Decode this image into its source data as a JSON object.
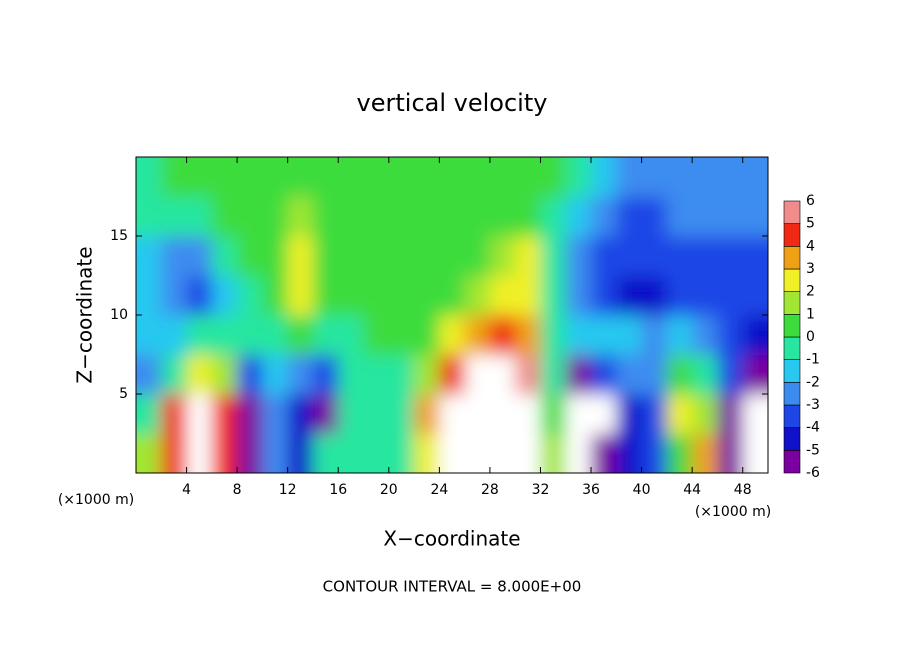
{
  "chart_data": {
    "type": "heatmap",
    "title": "vertical velocity",
    "x_label": "X−coordinate",
    "y_label": "Z−coordinate",
    "x_unit_label": "(×1000 m)",
    "x_unit_label_right": "(×1000 m)",
    "footnote": "CONTOUR INTERVAL = 8.000E+00",
    "xlim": [
      0,
      50
    ],
    "xticks": [
      4,
      8,
      12,
      16,
      20,
      24,
      28,
      32,
      36,
      40,
      44,
      48
    ],
    "ylim": [
      0,
      20
    ],
    "yticks": [
      5,
      10,
      15
    ],
    "x": [
      1,
      3,
      5,
      7,
      9,
      11,
      13,
      15,
      17,
      19,
      21,
      23,
      25,
      27,
      29,
      31,
      33,
      35,
      37,
      39,
      41,
      43,
      45,
      47,
      49
    ],
    "y": [
      1.25,
      3.75,
      6.25,
      8.75,
      11.25,
      13.75,
      16.25,
      18.75
    ],
    "values": [
      [
        2,
        0,
        -2,
        -1,
        -1,
        -1,
        0,
        0
      ],
      [
        5,
        5,
        0,
        -1,
        -2,
        -2,
        0,
        1
      ],
      [
        9,
        9,
        3,
        0,
        -3,
        -2,
        0,
        1
      ],
      [
        5,
        5,
        2,
        0,
        -1,
        0,
        1,
        1
      ],
      [
        -5,
        -6,
        -3,
        0,
        0,
        1,
        1,
        1
      ],
      [
        -2,
        -2,
        -1,
        0,
        1,
        1,
        1,
        1
      ],
      [
        -4,
        -4,
        -2,
        1,
        3,
        3,
        2,
        1
      ],
      [
        0,
        -5,
        -3,
        0,
        1,
        1,
        1,
        1
      ],
      [
        0,
        0,
        0,
        0,
        1,
        1,
        1,
        1
      ],
      [
        0,
        0,
        0,
        1,
        1,
        1,
        1,
        1
      ],
      [
        0,
        0,
        0,
        1,
        1,
        1,
        1,
        1
      ],
      [
        3,
        4,
        2,
        1,
        1,
        1,
        1,
        1
      ],
      [
        8,
        8,
        5,
        3,
        1,
        1,
        1,
        1
      ],
      [
        9,
        9,
        7,
        4,
        2,
        1,
        1,
        1
      ],
      [
        9,
        9,
        8,
        5,
        3,
        2,
        1,
        1
      ],
      [
        8,
        8,
        6,
        4,
        3,
        3,
        1,
        1
      ],
      [
        2,
        1,
        0,
        0,
        0,
        0,
        0,
        1
      ],
      [
        -7,
        -7,
        -5,
        -1,
        -2,
        -2,
        -1,
        0
      ],
      [
        -6,
        -7,
        -3,
        -1,
        -3,
        -3,
        -2,
        -1
      ],
      [
        -4,
        -4,
        -2,
        -1,
        -4,
        -3,
        -3,
        -2
      ],
      [
        -3,
        -3,
        -2,
        -2,
        -4,
        -3,
        -3,
        -2
      ],
      [
        1,
        3,
        1,
        -1,
        -3,
        -3,
        -2,
        -2
      ],
      [
        4,
        2,
        0,
        -2,
        -3,
        -3,
        -2,
        -2
      ],
      [
        -6,
        -6,
        -3,
        -3,
        -3,
        -3,
        -2,
        -2
      ],
      [
        -7,
        -7,
        -5,
        -4,
        -3,
        -3,
        -2,
        -2
      ]
    ],
    "levels": [
      -6,
      -5,
      -4,
      -3,
      -2,
      -1,
      0,
      1,
      2,
      3,
      4,
      5,
      6
    ],
    "colors": [
      "#7a00a0",
      "#1010c8",
      "#1e46e6",
      "#3c8cf0",
      "#28c8f0",
      "#28e6a0",
      "#3cdc3c",
      "#a0e632",
      "#f0f028",
      "#f0a014",
      "#f02814",
      "#f08c8c"
    ],
    "out_of_range_color": "#ffffff"
  }
}
